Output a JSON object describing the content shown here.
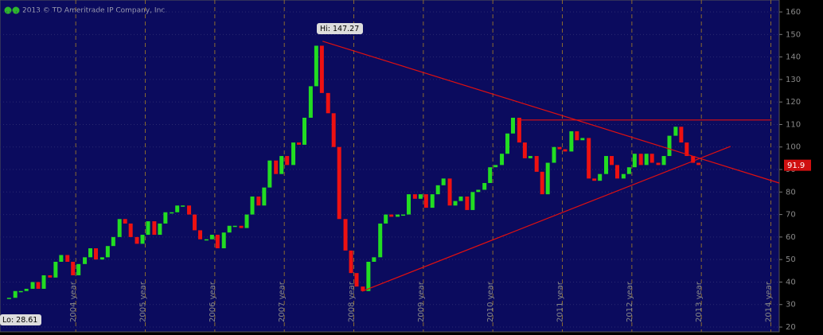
{
  "chart_data": {
    "type": "candlestick",
    "copyright": "2013 © TD Ameritrade IP Company, Inc.",
    "hi_label": "Hi: 147.27",
    "lo_label": "Lo: 28.61",
    "last_label": "91.9",
    "last_value": 91.9,
    "up_color": "#22dd22",
    "down_color": "#ee1111",
    "trend_color": "#e01010",
    "grid": true,
    "xlim": [
      2002.91,
      2014.12
    ],
    "xticks": [
      {
        "value": 2004,
        "label": "2004 year"
      },
      {
        "value": 2005,
        "label": "2005 year"
      },
      {
        "value": 2006,
        "label": "2006 year"
      },
      {
        "value": 2007,
        "label": "2007 year"
      },
      {
        "value": 2008,
        "label": "2008 year"
      },
      {
        "value": 2009,
        "label": "2009 year"
      },
      {
        "value": 2010,
        "label": "2010 year"
      },
      {
        "value": 2011,
        "label": "2011 year"
      },
      {
        "value": 2012,
        "label": "2012 year"
      },
      {
        "value": 2013,
        "label": "2013 year"
      },
      {
        "value": 2014,
        "label": "2014 year"
      }
    ],
    "ylim": [
      19.3,
      163.9
    ],
    "yticks": [
      20,
      30,
      40,
      50,
      60,
      70,
      80,
      90,
      100,
      110,
      120,
      130,
      140,
      150,
      160
    ],
    "x": [
      2003.04,
      2003.13,
      2003.21,
      2003.29,
      2003.38,
      2003.46,
      2003.54,
      2003.63,
      2003.71,
      2003.79,
      2003.88,
      2003.96,
      2004.04,
      2004.13,
      2004.21,
      2004.29,
      2004.38,
      2004.46,
      2004.54,
      2004.63,
      2004.71,
      2004.79,
      2004.88,
      2004.96,
      2005.04,
      2005.13,
      2005.21,
      2005.29,
      2005.38,
      2005.46,
      2005.54,
      2005.63,
      2005.71,
      2005.79,
      2005.88,
      2005.96,
      2006.04,
      2006.13,
      2006.21,
      2006.29,
      2006.38,
      2006.46,
      2006.54,
      2006.63,
      2006.71,
      2006.79,
      2006.88,
      2006.96,
      2007.04,
      2007.13,
      2007.21,
      2007.29,
      2007.38,
      2007.46,
      2007.54,
      2007.63,
      2007.71,
      2007.79,
      2007.88,
      2007.96,
      2008.04,
      2008.13,
      2008.21,
      2008.29,
      2008.38,
      2008.46,
      2008.54,
      2008.63,
      2008.71,
      2008.79,
      2008.88,
      2008.96,
      2009.04,
      2009.13,
      2009.21,
      2009.29,
      2009.38,
      2009.46,
      2009.54,
      2009.63,
      2009.71,
      2009.79,
      2009.88,
      2009.96,
      2010.04,
      2010.13,
      2010.21,
      2010.29,
      2010.38,
      2010.46,
      2010.54,
      2010.63,
      2010.71,
      2010.79,
      2010.88,
      2010.96,
      2011.04,
      2011.13,
      2011.21,
      2011.29,
      2011.38,
      2011.46,
      2011.54,
      2011.63,
      2011.71,
      2011.79,
      2011.88,
      2011.96,
      2012.04,
      2012.13,
      2012.21,
      2012.29,
      2012.38,
      2012.46,
      2012.54,
      2012.63,
      2012.71,
      2012.79,
      2012.88,
      2012.96
    ],
    "values": [
      33,
      36,
      36,
      37,
      40,
      37,
      43,
      42,
      49,
      52,
      49,
      43,
      48,
      51,
      55,
      50,
      51,
      56,
      60,
      68,
      66,
      60,
      57,
      61,
      67,
      61,
      66,
      71,
      71,
      74,
      74,
      70,
      63,
      59,
      59,
      61,
      55,
      62,
      65,
      65,
      64,
      70,
      78,
      74,
      82,
      94,
      88,
      96,
      92,
      102,
      101,
      113,
      127,
      145,
      124,
      115,
      100,
      68,
      54,
      44,
      38,
      36,
      49,
      51,
      66,
      70,
      69,
      70,
      70,
      79,
      77,
      79,
      73,
      79,
      83,
      86,
      74,
      76,
      78,
      72,
      80,
      81,
      84,
      91,
      92,
      97,
      106,
      113,
      102,
      95,
      96,
      89,
      79,
      93,
      100,
      99,
      98,
      107,
      103,
      104,
      86,
      85,
      88,
      96,
      92,
      86,
      88,
      91,
      97,
      92,
      97,
      93,
      92,
      96,
      105,
      109,
      102,
      96,
      93,
      92
    ],
    "trendlines": [
      {
        "x": [
          2007.55,
          2014.12
        ],
        "y": [
          147,
          84
        ]
      },
      {
        "x": [
          2008.12,
          2013.42
        ],
        "y": [
          35.9,
          100.3
        ]
      },
      {
        "x": [
          2010.35,
          2014.01
        ],
        "y": [
          112,
          112
        ]
      }
    ]
  }
}
